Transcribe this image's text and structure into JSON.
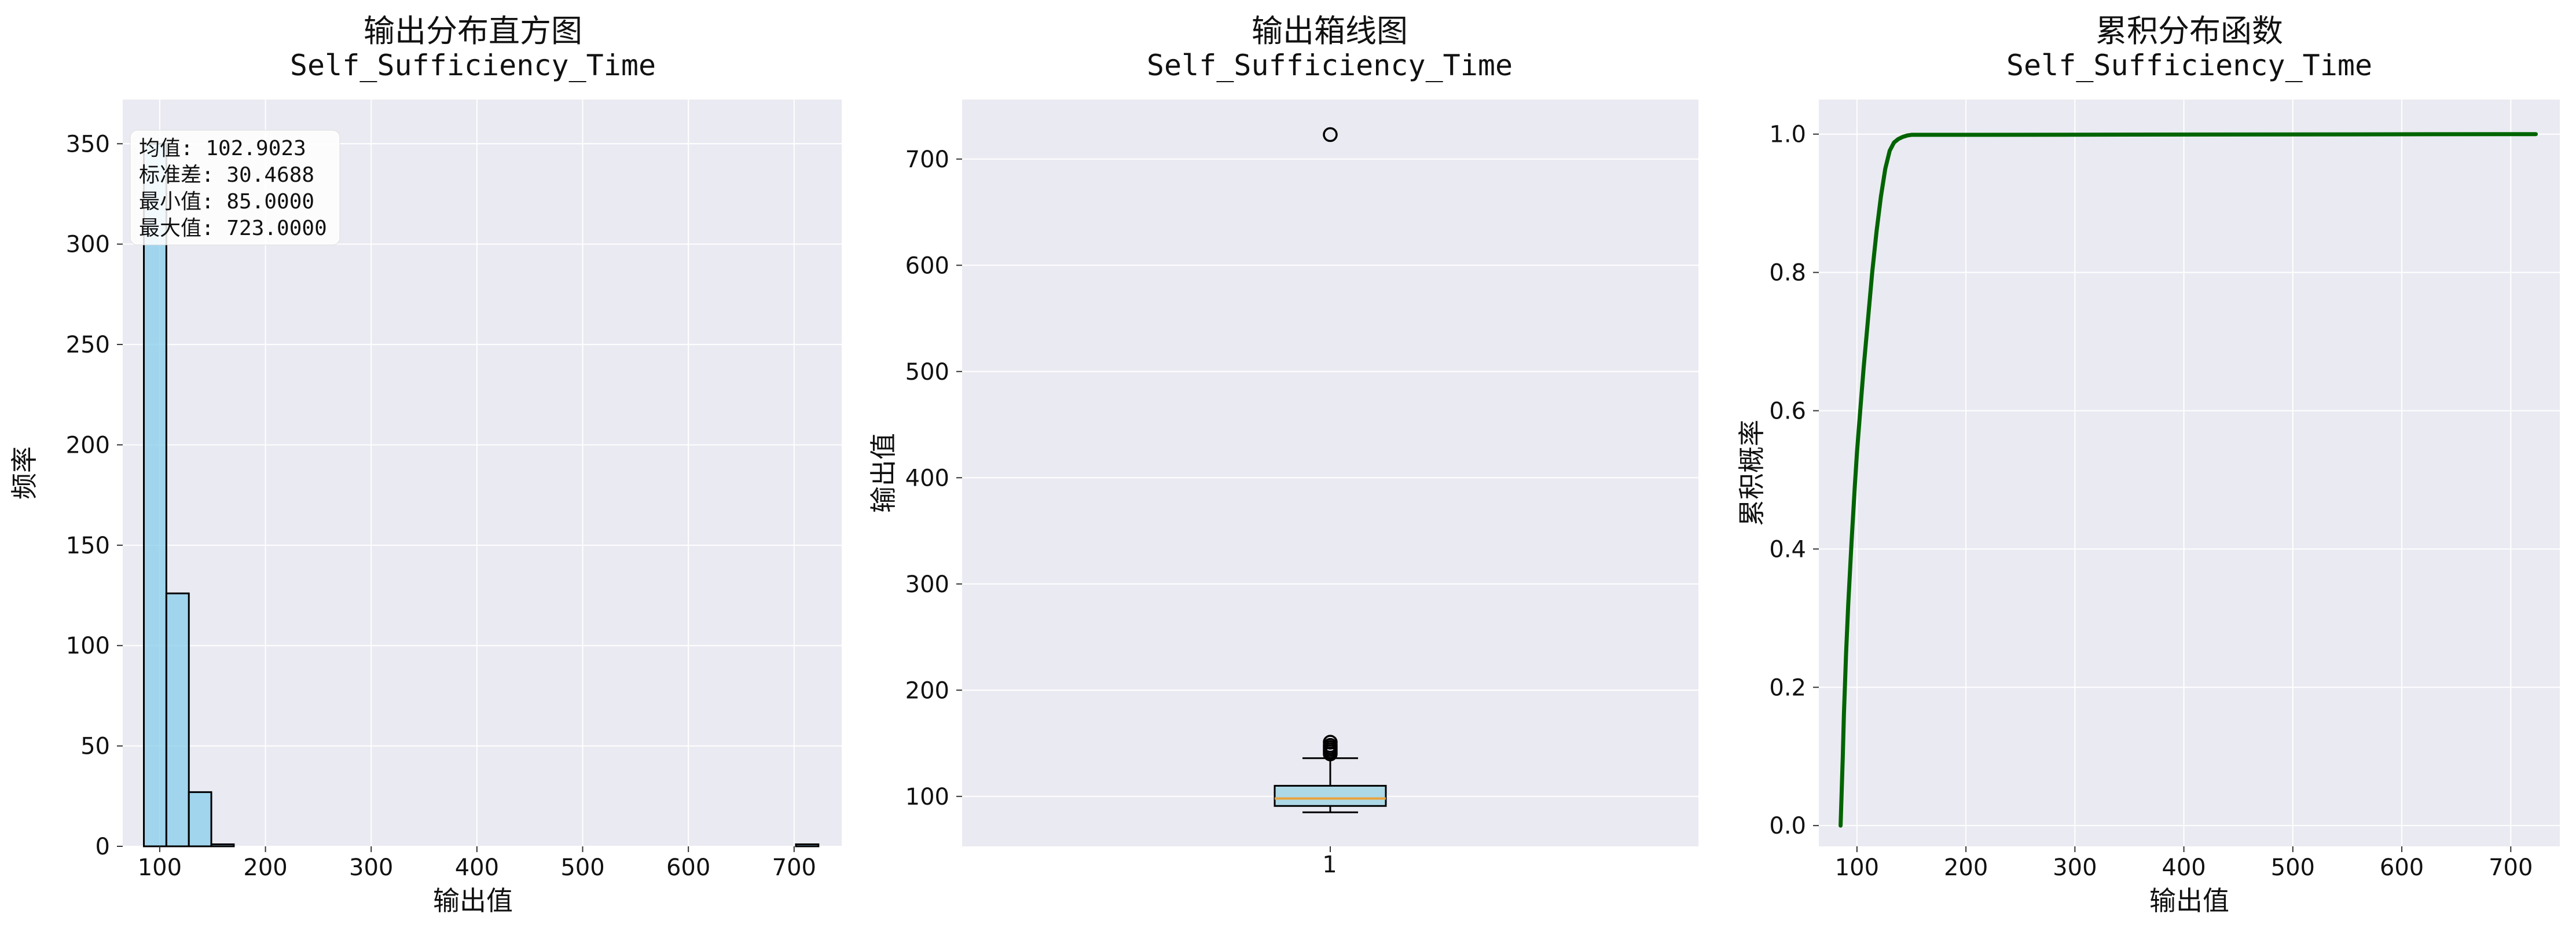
{
  "chart_data": [
    {
      "type": "histogram",
      "title": "输出分布直方图",
      "subtitle": "Self_Sufficiency_Time",
      "xlabel": "输出值",
      "ylabel": "频率",
      "xlim": [
        65,
        745
      ],
      "ylim": [
        0,
        372
      ],
      "xticks": [
        100,
        200,
        300,
        400,
        500,
        600,
        700
      ],
      "yticks": [
        0,
        50,
        100,
        150,
        200,
        250,
        300,
        350
      ],
      "bin_width": 21.27,
      "bins": [
        {
          "x0": 85.0,
          "count": 350
        },
        {
          "x0": 106.27,
          "count": 126
        },
        {
          "x0": 127.53,
          "count": 27
        },
        {
          "x0": 148.8,
          "count": 1
        },
        {
          "x0": 701.73,
          "count": 1
        }
      ],
      "color": "#87CEEB",
      "edge_color": "#000000",
      "stats": [
        {
          "label": "均值: 102.9023"
        },
        {
          "label": "标准差: 30.4688"
        },
        {
          "label": "最小值: 85.0000"
        },
        {
          "label": "最大值: 723.0000"
        }
      ]
    },
    {
      "type": "box",
      "title": "输出箱线图",
      "subtitle": "Self_Sufficiency_Time",
      "xlabel": "",
      "ylabel": "输出值",
      "category": "1",
      "ylim": [
        53,
        756
      ],
      "yticks": [
        100,
        200,
        300,
        400,
        500,
        600,
        700
      ],
      "whisker_low": 85,
      "q1": 91,
      "median": 98,
      "q3": 110,
      "whisker_high": 136,
      "outliers": [
        140,
        142,
        144,
        146,
        148,
        151,
        723
      ],
      "fill_color": "#ADD8E6",
      "median_color": "#E8A33C"
    },
    {
      "type": "line",
      "title": "累积分布函数",
      "subtitle": "Self_Sufficiency_Time",
      "xlabel": "输出值",
      "ylabel": "累积概率",
      "xlim": [
        65,
        745
      ],
      "ylim": [
        -0.03,
        1.05
      ],
      "xticks": [
        100,
        200,
        300,
        400,
        500,
        600,
        700
      ],
      "yticks": [
        0.0,
        0.2,
        0.4,
        0.6,
        0.8,
        1.0
      ],
      "x": [
        85,
        86,
        87,
        88,
        90,
        92,
        95,
        98,
        100,
        103,
        106,
        110,
        114,
        118,
        122,
        126,
        130,
        134,
        138,
        142,
        146,
        150,
        160,
        200,
        723
      ],
      "y": [
        0.0,
        0.05,
        0.1,
        0.16,
        0.25,
        0.32,
        0.41,
        0.49,
        0.54,
        0.6,
        0.66,
        0.73,
        0.8,
        0.86,
        0.91,
        0.95,
        0.976,
        0.988,
        0.993,
        0.996,
        0.998,
        0.999,
        0.999,
        0.999,
        1.0
      ],
      "color": "#006400"
    }
  ]
}
